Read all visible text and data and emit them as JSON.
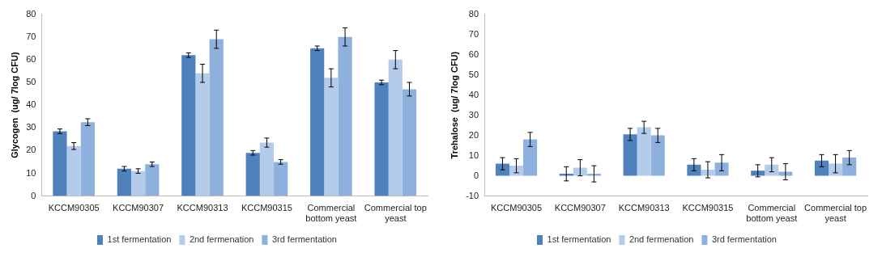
{
  "chart_data": [
    {
      "type": "bar",
      "ylabel": "Glycogen  (ug/ 7log CFU)",
      "categories": [
        "KCCM90305",
        "KCCM90307",
        "KCCM90313",
        "KCCM90315",
        "Commercial bottom yeast",
        "Commercial top yeast"
      ],
      "ylim": [
        0,
        80
      ],
      "yticks": [
        0,
        10,
        20,
        30,
        40,
        50,
        60,
        70,
        80
      ],
      "grid": false,
      "legend": "bottom",
      "series": [
        {
          "name": "1st fermentation",
          "color": "#4f81bd",
          "values": [
            28.5,
            12,
            62,
            19,
            65,
            50
          ],
          "errors": [
            1,
            1,
            1,
            1,
            1,
            1
          ]
        },
        {
          "name": "2nd fermenation",
          "color": "#b4cbe9",
          "values": [
            22,
            11,
            54,
            23.5,
            52,
            60
          ],
          "errors": [
            1.5,
            1,
            4,
            2,
            4,
            4
          ]
        },
        {
          "name": "3rd fermentation",
          "color": "#8eb0dc",
          "values": [
            32.5,
            14,
            69,
            15,
            70,
            47
          ],
          "errors": [
            1.5,
            1,
            4,
            1,
            4,
            3
          ]
        }
      ]
    },
    {
      "type": "bar",
      "ylabel": "Trehalose  (ug/ 7log CFU)",
      "categories": [
        "KCCM90305",
        "KCCM90307",
        "KCCM90313",
        "KCCM90315",
        "Commercial bottom yeast",
        "Commercial top yeast"
      ],
      "ylim": [
        -10,
        80
      ],
      "yticks": [
        -10,
        0,
        10,
        20,
        30,
        40,
        50,
        60,
        70,
        80
      ],
      "grid": false,
      "legend": "bottom",
      "series": [
        {
          "name": "1st fermentation",
          "color": "#4f81bd",
          "values": [
            6,
            1,
            20.5,
            5.5,
            2.5,
            7.5
          ],
          "errors": [
            3,
            3.5,
            3,
            3,
            3,
            3
          ]
        },
        {
          "name": "2nd fermenation",
          "color": "#b4cbe9",
          "values": [
            5,
            4,
            24,
            3,
            5.5,
            6
          ],
          "errors": [
            3.5,
            4,
            3,
            4,
            3.5,
            4.5
          ]
        },
        {
          "name": "3rd fermentation",
          "color": "#8eb0dc",
          "values": [
            18,
            1,
            20,
            6.5,
            2,
            9
          ],
          "errors": [
            3.5,
            4,
            3.5,
            4,
            4,
            3.5
          ]
        }
      ]
    }
  ]
}
